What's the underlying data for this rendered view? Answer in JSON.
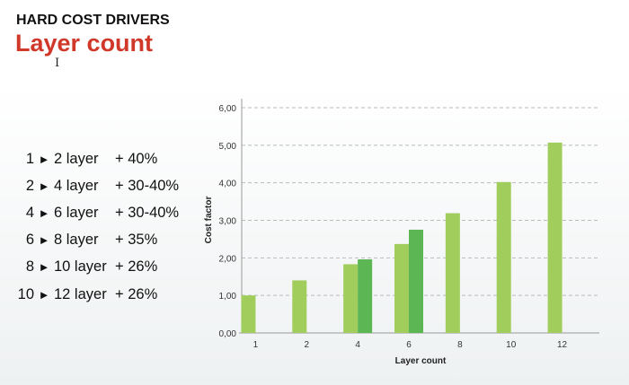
{
  "header": {
    "supertitle": "HARD COST DRIVERS",
    "title": "Layer count",
    "cursor_icon": "text-cursor-icon"
  },
  "drivers": [
    {
      "from": "1",
      "to": "2 layer",
      "increase": "+ 40%"
    },
    {
      "from": "2",
      "to": "4 layer",
      "increase": "+ 30-40%"
    },
    {
      "from": "4",
      "to": "6 layer",
      "increase": "+ 30-40%"
    },
    {
      "from": "6",
      "to": "8 layer",
      "increase": "+ 35%"
    },
    {
      "from": "8",
      "to": "10 layer",
      "increase": "+ 26%"
    },
    {
      "from": "10",
      "to": "12 layer",
      "increase": "+ 26%"
    }
  ],
  "arrow_glyph": "►",
  "chart_data": {
    "type": "bar",
    "xlabel": "Layer count",
    "ylabel": "Cost factor",
    "categories": [
      "1",
      "2",
      "4",
      "6",
      "8",
      "10",
      "12"
    ],
    "series": [
      {
        "values": [
          1.0,
          1.4,
          1.83,
          2.37,
          3.19,
          4.02,
          5.07
        ],
        "color": "#a0cd5c"
      },
      {
        "values": [
          null,
          null,
          1.96,
          2.75,
          null,
          null,
          null
        ],
        "color": "#5cb653"
      }
    ],
    "ylim": [
      0,
      6
    ],
    "yticks": [
      "0,00",
      "1,00",
      "2,00",
      "3,00",
      "4,00",
      "5,00",
      "6,00"
    ],
    "grid": true,
    "legend": "none"
  }
}
